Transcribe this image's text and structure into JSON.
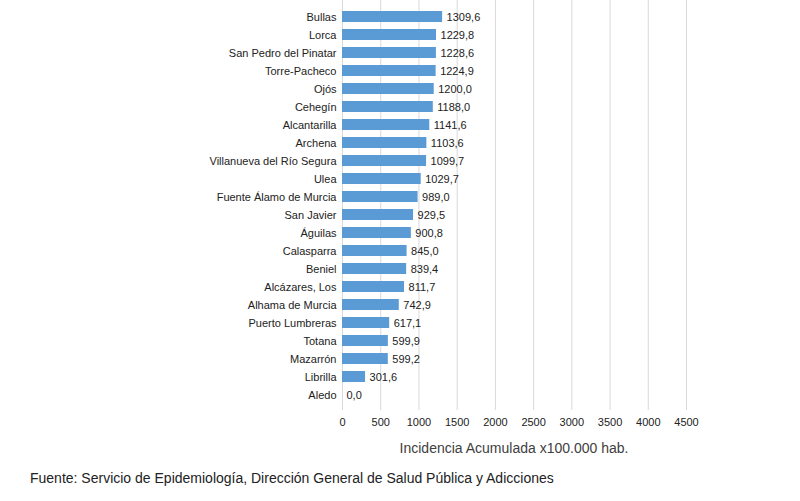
{
  "chart_data": {
    "type": "bar",
    "orientation": "horizontal",
    "xlabel": "Incidencia Acumulada x100.000 hab.",
    "caption": "Fuente: Servicio de Epidemiología, Dirección General de Salud Pública y Adicciones",
    "categories": [
      "Bullas",
      "Lorca",
      "San Pedro del Pinatar",
      "Torre-Pacheco",
      "Ojós",
      "Cehegín",
      "Alcantarilla",
      "Archena",
      "Villanueva del Río Segura",
      "Ulea",
      "Fuente Álamo de Murcia",
      "San Javier",
      "Águilas",
      "Calasparra",
      "Beniel",
      "Alcázares, Los",
      "Alhama de Murcia",
      "Puerto Lumbreras",
      "Totana",
      "Mazarrón",
      "Librilla",
      "Aledo"
    ],
    "values": [
      1309.6,
      1229.8,
      1228.6,
      1224.9,
      1200.0,
      1188.0,
      1141.6,
      1103.6,
      1099.7,
      1029.7,
      989.0,
      929.5,
      900.8,
      845.0,
      839.4,
      811.7,
      742.9,
      617.1,
      599.9,
      599.2,
      301.6,
      0.0
    ],
    "value_labels": [
      "1309,6",
      "1229,8",
      "1228,6",
      "1224,9",
      "1200,0",
      "1188,0",
      "1141,6",
      "1103,6",
      "1099,7",
      "1029,7",
      "989,0",
      "929,5",
      "900,8",
      "845,0",
      "839,4",
      "811,7",
      "742,9",
      "617,1",
      "599,9",
      "599,2",
      "301,6",
      "0,0"
    ],
    "data_labels": true,
    "color": "#5b9bd5",
    "xlim": [
      0,
      4500
    ],
    "xticks": [
      0,
      500,
      1000,
      1500,
      2000,
      2500,
      3000,
      3500,
      4000,
      4500
    ],
    "grid": true
  }
}
